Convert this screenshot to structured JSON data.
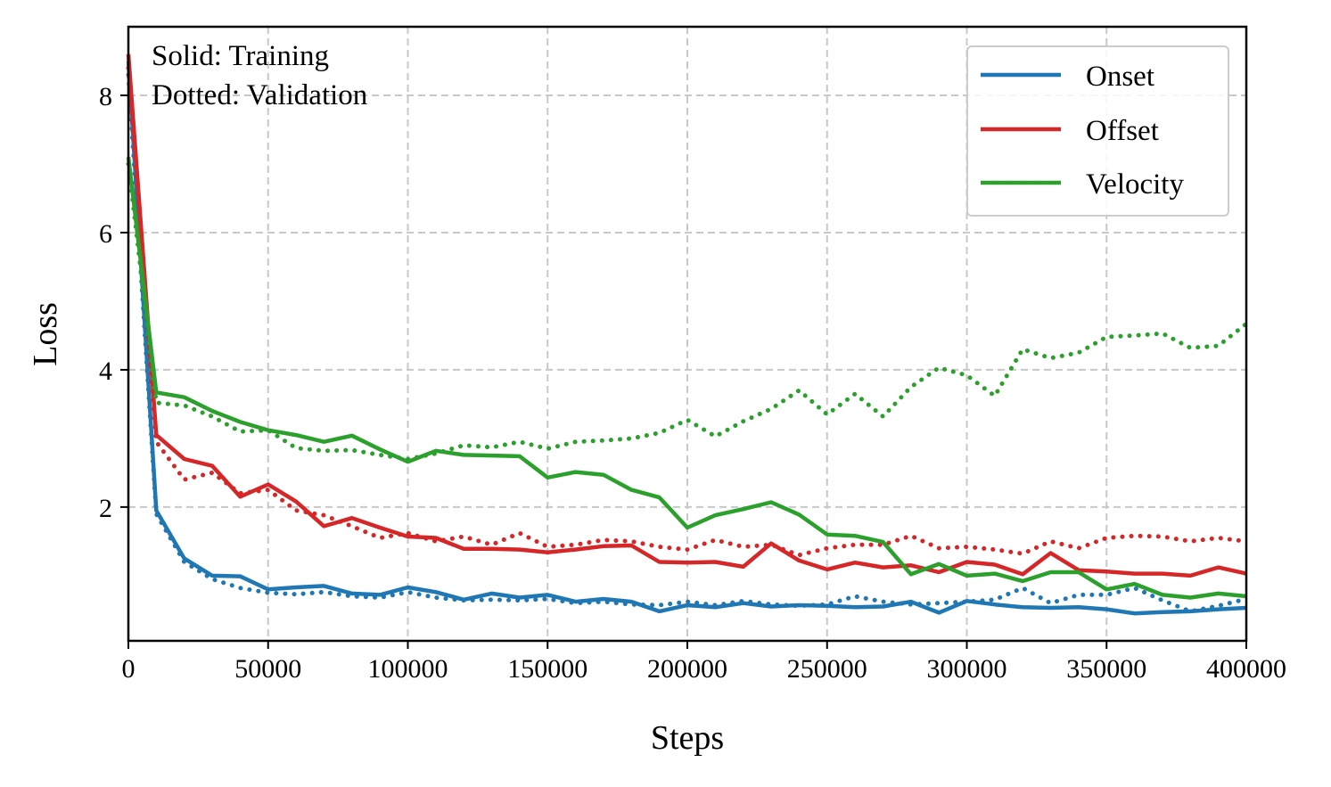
{
  "chart_data": {
    "type": "line",
    "xlabel": "Steps",
    "ylabel": "Loss",
    "xlim": [
      0,
      400000
    ],
    "ylim": [
      0.05,
      9.0
    ],
    "grid": true,
    "x_ticks": [
      0,
      50000,
      100000,
      150000,
      200000,
      250000,
      300000,
      350000,
      400000
    ],
    "x_tick_labels": [
      "0",
      "50000",
      "100000",
      "150000",
      "200000",
      "250000",
      "300000",
      "350000",
      "400000"
    ],
    "y_ticks": [
      2,
      4,
      6,
      8
    ],
    "y_tick_labels": [
      "2",
      "4",
      "6",
      "8"
    ],
    "annotations": [
      "Solid: Training",
      "Dotted: Validation"
    ],
    "legend_position": "top-right",
    "colors": {
      "Onset": "#1f77b4",
      "Offset": "#d62728",
      "Velocity": "#2ca02c"
    },
    "x": [
      0,
      10000,
      20000,
      30000,
      40000,
      50000,
      60000,
      70000,
      80000,
      90000,
      100000,
      110000,
      120000,
      130000,
      140000,
      150000,
      160000,
      170000,
      180000,
      190000,
      200000,
      210000,
      220000,
      230000,
      240000,
      250000,
      260000,
      270000,
      280000,
      290000,
      300000,
      310000,
      320000,
      330000,
      340000,
      350000,
      360000,
      370000,
      380000,
      390000,
      400000
    ],
    "series": [
      {
        "name": "Onset",
        "split": "Training",
        "style": "solid",
        "values": [
          8.5,
          1.95,
          1.25,
          1.0,
          0.99,
          0.8,
          0.83,
          0.85,
          0.74,
          0.72,
          0.83,
          0.76,
          0.65,
          0.74,
          0.68,
          0.72,
          0.62,
          0.66,
          0.62,
          0.48,
          0.57,
          0.54,
          0.6,
          0.55,
          0.57,
          0.56,
          0.54,
          0.55,
          0.62,
          0.46,
          0.63,
          0.58,
          0.54,
          0.53,
          0.54,
          0.51,
          0.45,
          0.47,
          0.48,
          0.51,
          0.53
        ]
      },
      {
        "name": "Onset",
        "split": "Validation",
        "style": "dotted",
        "values": [
          8.3,
          1.9,
          1.2,
          0.95,
          0.82,
          0.75,
          0.73,
          0.76,
          0.7,
          0.68,
          0.76,
          0.68,
          0.64,
          0.65,
          0.64,
          0.66,
          0.6,
          0.62,
          0.58,
          0.57,
          0.62,
          0.57,
          0.63,
          0.58,
          0.56,
          0.58,
          0.7,
          0.62,
          0.58,
          0.6,
          0.62,
          0.65,
          0.82,
          0.6,
          0.72,
          0.72,
          0.82,
          0.64,
          0.48,
          0.56,
          0.66
        ]
      },
      {
        "name": "Offset",
        "split": "Training",
        "style": "solid",
        "values": [
          8.6,
          3.05,
          2.7,
          2.6,
          2.15,
          2.33,
          2.08,
          1.72,
          1.84,
          1.7,
          1.57,
          1.55,
          1.39,
          1.39,
          1.38,
          1.34,
          1.38,
          1.43,
          1.44,
          1.2,
          1.19,
          1.2,
          1.13,
          1.47,
          1.22,
          1.09,
          1.19,
          1.12,
          1.15,
          1.05,
          1.2,
          1.16,
          1.02,
          1.33,
          1.08,
          1.06,
          1.03,
          1.03,
          1.0,
          1.12,
          1.03
        ]
      },
      {
        "name": "Offset",
        "split": "Validation",
        "style": "dotted",
        "values": [
          8.4,
          2.95,
          2.4,
          2.5,
          2.2,
          2.25,
          1.95,
          1.88,
          1.72,
          1.55,
          1.62,
          1.5,
          1.57,
          1.45,
          1.62,
          1.42,
          1.45,
          1.52,
          1.5,
          1.42,
          1.38,
          1.52,
          1.42,
          1.45,
          1.3,
          1.4,
          1.45,
          1.45,
          1.58,
          1.4,
          1.42,
          1.38,
          1.32,
          1.5,
          1.4,
          1.55,
          1.58,
          1.57,
          1.5,
          1.55,
          1.5
        ]
      },
      {
        "name": "Velocity",
        "split": "Training",
        "style": "solid",
        "values": [
          7.1,
          3.67,
          3.6,
          3.4,
          3.24,
          3.12,
          3.05,
          2.95,
          3.04,
          2.84,
          2.66,
          2.82,
          2.76,
          2.75,
          2.74,
          2.43,
          2.51,
          2.47,
          2.25,
          2.14,
          1.7,
          1.88,
          1.97,
          2.07,
          1.89,
          1.6,
          1.58,
          1.49,
          1.02,
          1.17,
          1.0,
          1.03,
          0.92,
          1.05,
          1.05,
          0.8,
          0.88,
          0.72,
          0.68,
          0.74,
          0.7
        ]
      },
      {
        "name": "Velocity",
        "split": "Validation",
        "style": "dotted",
        "values": [
          7.0,
          3.52,
          3.48,
          3.32,
          3.1,
          3.12,
          2.86,
          2.82,
          2.83,
          2.76,
          2.7,
          2.78,
          2.9,
          2.87,
          2.95,
          2.85,
          2.95,
          2.97,
          3.0,
          3.08,
          3.27,
          3.03,
          3.25,
          3.43,
          3.7,
          3.35,
          3.65,
          3.32,
          3.75,
          4.03,
          3.92,
          3.62,
          4.3,
          4.17,
          4.25,
          4.48,
          4.5,
          4.53,
          4.32,
          4.35,
          4.67
        ]
      }
    ]
  }
}
